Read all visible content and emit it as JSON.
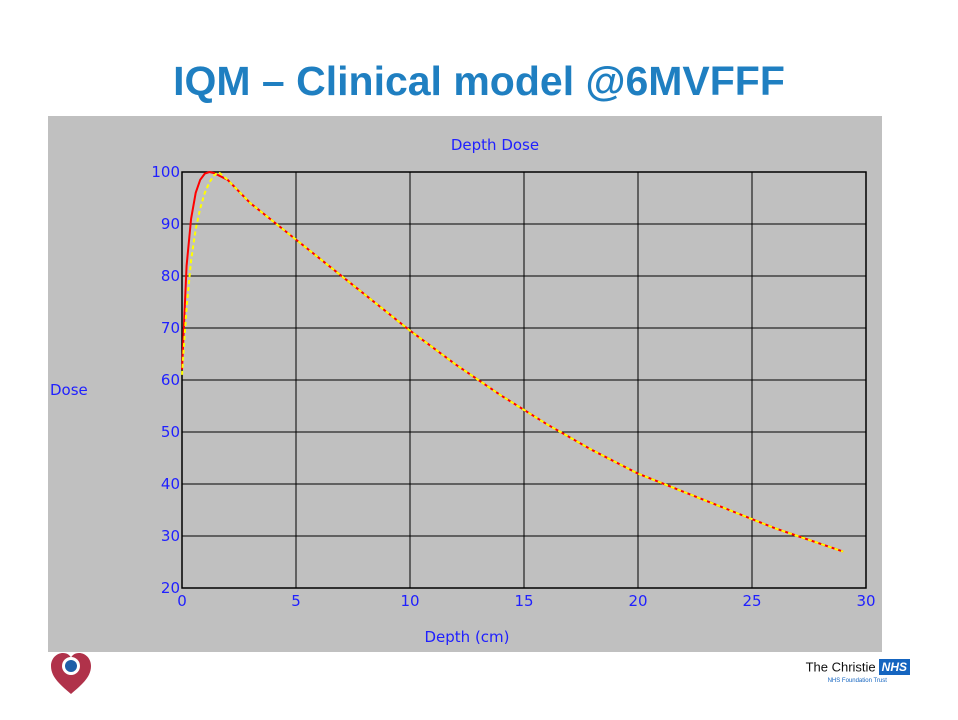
{
  "slide": {
    "title": "IQM – Clinical model @6MVFFF"
  },
  "branding": {
    "organization": "The Christie",
    "badge": "NHS",
    "subtitle": "NHS Foundation Trust",
    "logo_icon": "heart-pin-icon"
  },
  "colors": {
    "title": "#1f7fc1",
    "chart_background": "#c0c0c0",
    "chart_text": "#2020ff",
    "grid": "#000000",
    "series_measured": "#ff0000",
    "series_model": "#ffff00",
    "logo_heart": "#b0324a",
    "logo_dot": "#1f5fa8"
  },
  "chart_data": {
    "type": "line",
    "title": "Depth Dose",
    "xlabel": "Depth (cm)",
    "ylabel": "Dose",
    "xlim": [
      0,
      30
    ],
    "ylim": [
      20,
      100
    ],
    "xticks": [
      0,
      5,
      10,
      15,
      20,
      25,
      30
    ],
    "yticks": [
      20,
      30,
      40,
      50,
      60,
      70,
      80,
      90,
      100
    ],
    "grid": true,
    "series": [
      {
        "color": "#ff0000",
        "style": "solid",
        "x": [
          0,
          0.2,
          0.4,
          0.6,
          0.8,
          1.0,
          1.2,
          1.4,
          2,
          3,
          4,
          5,
          6,
          8,
          10,
          12,
          14,
          16,
          18,
          20,
          22,
          24,
          26,
          27,
          29
        ],
        "y": [
          62,
          82,
          91,
          96,
          98.5,
          99.7,
          100,
          99.8,
          98.5,
          94,
          90.5,
          87,
          83.5,
          76.5,
          69.5,
          63,
          57,
          51.5,
          46.5,
          42,
          38.5,
          35,
          31.5,
          30,
          27
        ]
      },
      {
        "color": "#ffff00",
        "style": "dashed",
        "x": [
          0,
          0.2,
          0.4,
          0.6,
          0.8,
          1.0,
          1.2,
          1.4,
          1.6,
          2,
          3,
          4,
          5,
          6,
          8,
          10,
          12,
          14,
          16,
          18,
          20,
          22,
          24,
          26,
          27,
          29
        ],
        "y": [
          61,
          74,
          83,
          89,
          93,
          96,
          98,
          99.3,
          100,
          98.5,
          94,
          90.5,
          87,
          83.5,
          76.5,
          69.5,
          63,
          57,
          51.5,
          46.5,
          42,
          38.5,
          35,
          31.5,
          30,
          27
        ]
      }
    ]
  }
}
